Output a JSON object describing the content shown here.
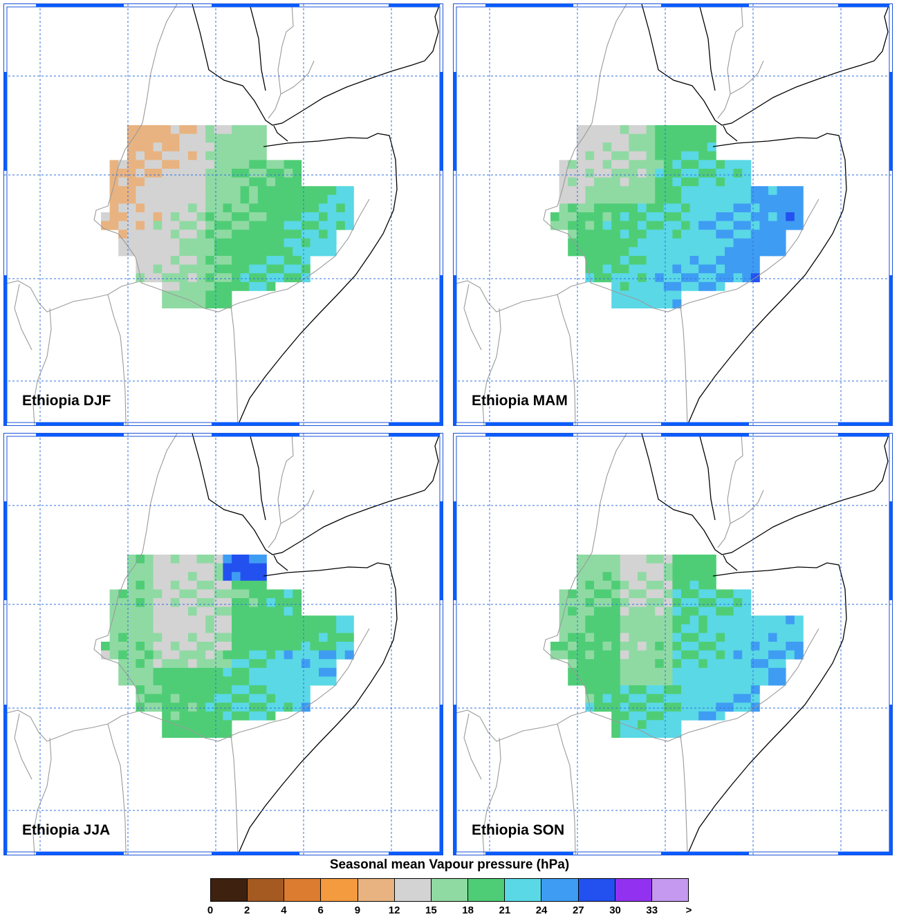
{
  "panels": [
    {
      "id": "djf",
      "title": "Ethiopia DJF"
    },
    {
      "id": "mam",
      "title": "Ethiopia MAM"
    },
    {
      "id": "jja",
      "title": "Ethiopia JJA"
    },
    {
      "id": "son",
      "title": "Ethiopia SON"
    }
  ],
  "legend": {
    "title": "Seasonal mean Vapour pressure (hPa)",
    "tick_labels": [
      "0",
      "2",
      "4",
      "6",
      "9",
      "12",
      "15",
      "18",
      "21",
      "24",
      "27",
      "30",
      "33",
      ">"
    ],
    "colors": [
      "#3f2110",
      "#a55a22",
      "#db7c30",
      "#f49a3f",
      "#e8b380",
      "#d3d3d3",
      "#8fdaa3",
      "#4fcd76",
      "#5ad8e6",
      "#3f9cf3",
      "#2351f0",
      "#9232f0",
      "#c599ef"
    ]
  },
  "map_style": {
    "frame_color": "#1a52d8",
    "tick_bar_color": "#0a5cff",
    "grid_color": "#2f6fe0",
    "coast_color": "#000000",
    "border_color": "#9a9a9a"
  }
}
